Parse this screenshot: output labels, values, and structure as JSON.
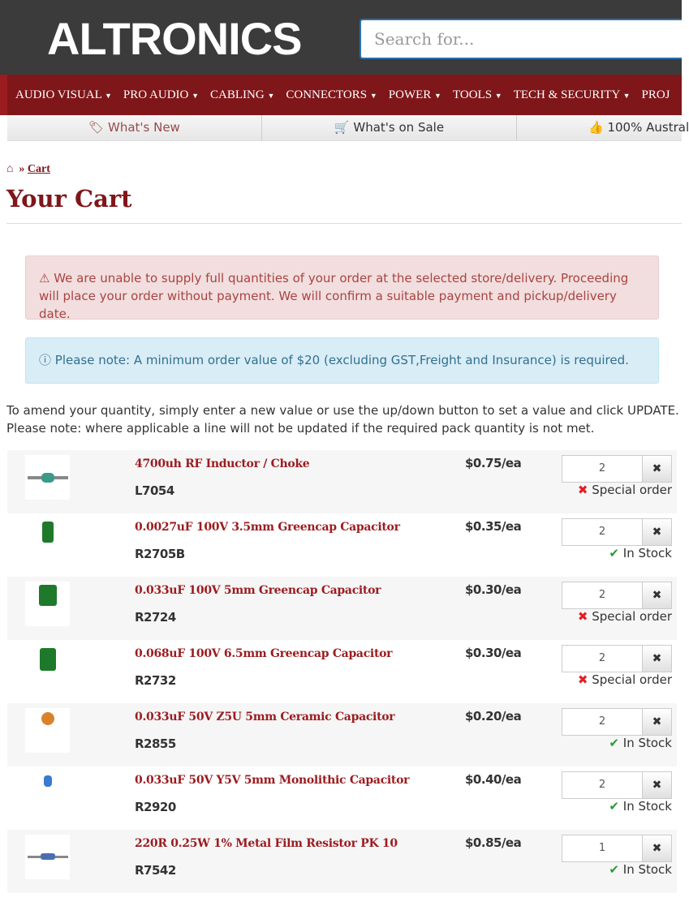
{
  "header": {
    "logo": "ALTRONICS",
    "search_placeholder": "Search for..."
  },
  "nav": [
    "AUDIO VISUAL",
    "PRO AUDIO",
    "CABLING",
    "CONNECTORS",
    "POWER",
    "TOOLS",
    "TECH & SECURITY",
    "PROJ"
  ],
  "subnav": {
    "new": "What's New",
    "sale": "What's on Sale",
    "aus": "100% Austral"
  },
  "breadcrumb": {
    "current": "Cart"
  },
  "title": "Your Cart",
  "alerts": {
    "danger": "We are unable to supply full quantities of your order at the selected store/delivery. Proceeding will place your order without payment. We will confirm a suitable payment and pickup/delivery date.",
    "info": "Please note: A minimum order value of $20 (excluding GST,Freight and Insurance) is required."
  },
  "instructions": "To amend your quantity, simply enter a new value or use the up/down button to set a value and click UPDATE. Please note: where applicable a line will not be updated if the required pack quantity is not met.",
  "colors": {
    "brand": "#7f1619",
    "in_stock": "#2a9a3a",
    "special": "#e0202a"
  },
  "items": [
    {
      "name": "4700uh RF Inductor / Choke",
      "code": "L7054",
      "price": "$0.75/ea",
      "qty": "2",
      "status": "Special order"
    },
    {
      "name": "0.0027uF 100V 3.5mm Greencap Capacitor",
      "code": "R2705B",
      "price": "$0.35/ea",
      "qty": "2",
      "status": "In Stock"
    },
    {
      "name": "0.033uF 100V 5mm Greencap Capacitor",
      "code": "R2724",
      "price": "$0.30/ea",
      "qty": "2",
      "status": "Special order"
    },
    {
      "name": "0.068uF 100V 6.5mm Greencap Capacitor",
      "code": "R2732",
      "price": "$0.30/ea",
      "qty": "2",
      "status": "Special order"
    },
    {
      "name": "0.033uF 50V Z5U 5mm Ceramic Capacitor",
      "code": "R2855",
      "price": "$0.20/ea",
      "qty": "2",
      "status": "In Stock"
    },
    {
      "name": "0.033uF 50V Y5V 5mm Monolithic Capacitor",
      "code": "R2920",
      "price": "$0.40/ea",
      "qty": "2",
      "status": "In Stock"
    },
    {
      "name": "220R 0.25W 1% Metal Film Resistor PK 10",
      "code": "R7542",
      "price": "$0.85/ea",
      "qty": "1",
      "status": "In Stock"
    }
  ]
}
